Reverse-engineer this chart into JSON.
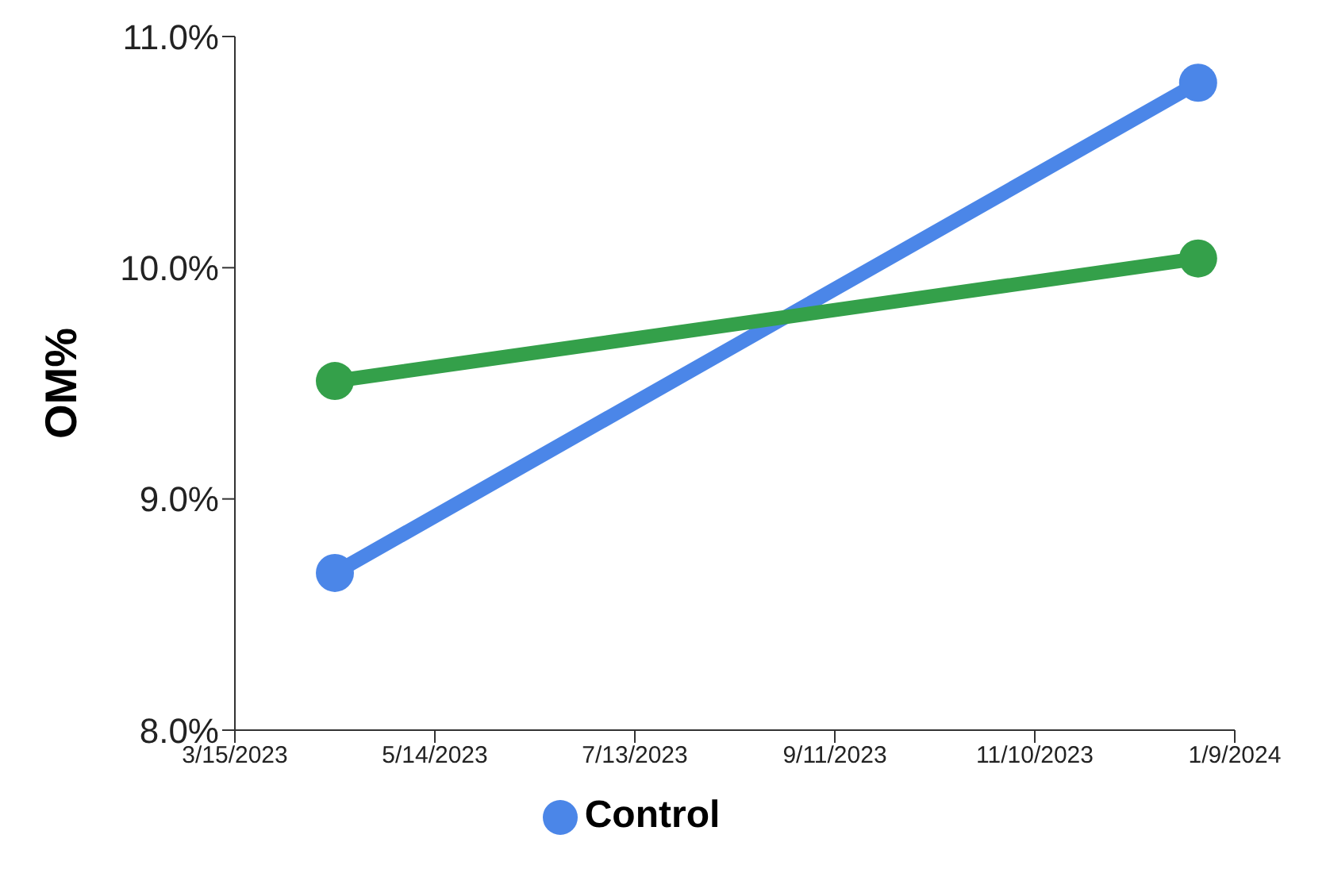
{
  "chart_data": {
    "type": "line",
    "ylabel": "OM%",
    "x": [
      "2023-04-14",
      "2023-12-29"
    ],
    "series": [
      {
        "name": "Control",
        "color": "#4b86e8",
        "values": [
          8.68,
          10.8
        ]
      },
      {
        "color": "#34a04a",
        "values": [
          9.51,
          10.04
        ]
      }
    ],
    "xlim": [
      "2023-03-15",
      "2024-01-09"
    ],
    "xticks": [
      {
        "value": "2023-03-15",
        "label": "3/15/2023"
      },
      {
        "value": "2023-05-14",
        "label": "5/14/2023"
      },
      {
        "value": "2023-07-13",
        "label": "7/13/2023"
      },
      {
        "value": "2023-09-11",
        "label": "9/11/2023"
      },
      {
        "value": "2023-11-10",
        "label": "11/10/2023"
      },
      {
        "value": "2024-01-09",
        "label": "1/9/2024"
      }
    ],
    "ylim": [
      8,
      11
    ],
    "yticks": [
      {
        "value": 8,
        "label": "8.0%"
      },
      {
        "value": 9,
        "label": "9.0%"
      },
      {
        "value": 10,
        "label": "10.0%"
      },
      {
        "value": 11,
        "label": "11.0%"
      }
    ],
    "grid": false,
    "legend": "bottom",
    "marker": "circle",
    "line_style": "solid"
  }
}
